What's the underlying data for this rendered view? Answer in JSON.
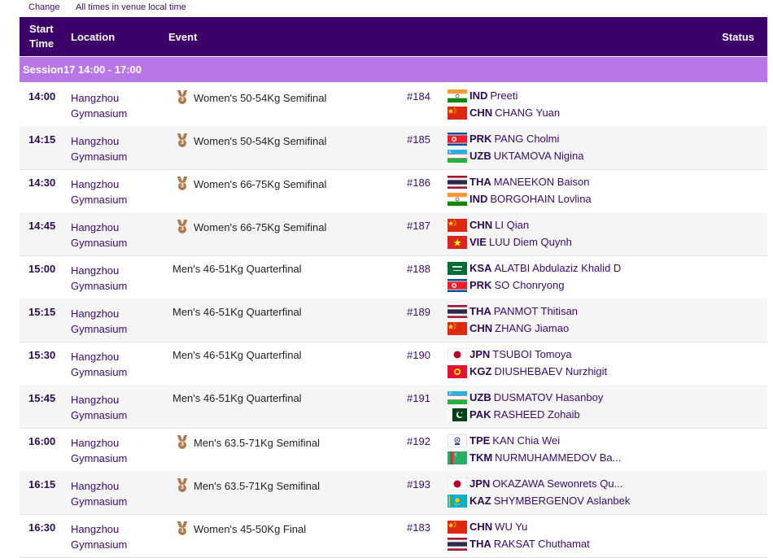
{
  "topbar": {
    "change_label": "Change",
    "timezone_note": "All times in venue local time"
  },
  "header": {
    "start_time": "Start Time",
    "location": "Location",
    "event": "Event",
    "status": "Status"
  },
  "session": {
    "label": "Session17  14:00 - 17:00"
  },
  "colors": {
    "header_bg": "#3d0068",
    "session_bg": "#b877e6",
    "medal_bronze": "#b4784a"
  },
  "rows": [
    {
      "time": "14:00",
      "location": "Hangzhou Gymnasium",
      "event": "Women's 50-54Kg Semifinal",
      "medal": "3",
      "number": "#184",
      "athletes": [
        {
          "flag": "flag-ind-icon",
          "noc": "IND",
          "name": "Preeti"
        },
        {
          "flag": "flag-chn-icon",
          "noc": "CHN",
          "name": "CHANG Yuan"
        }
      ]
    },
    {
      "time": "14:15",
      "location": "Hangzhou Gymnasium",
      "event": "Women's 50-54Kg Semifinal",
      "medal": "3",
      "number": "#185",
      "athletes": [
        {
          "flag": "flag-prk-icon",
          "noc": "PRK",
          "name": "PANG Cholmi"
        },
        {
          "flag": "flag-uzb-icon",
          "noc": "UZB",
          "name": "UKTAMOVA Nigina"
        }
      ]
    },
    {
      "time": "14:30",
      "location": "Hangzhou Gymnasium",
      "event": "Women's 66-75Kg Semifinal",
      "medal": "3",
      "number": "#186",
      "athletes": [
        {
          "flag": "flag-tha-icon",
          "noc": "THA",
          "name": "MANEEKON Baison"
        },
        {
          "flag": "flag-ind-icon",
          "noc": "IND",
          "name": "BORGOHAIN Lovlina"
        }
      ]
    },
    {
      "time": "14:45",
      "location": "Hangzhou Gymnasium",
      "event": "Women's 66-75Kg Semifinal",
      "medal": "3",
      "number": "#187",
      "athletes": [
        {
          "flag": "flag-chn-icon",
          "noc": "CHN",
          "name": "LI Qian"
        },
        {
          "flag": "flag-vie-icon",
          "noc": "VIE",
          "name": "LUU Diem Quynh"
        }
      ]
    },
    {
      "time": "15:00",
      "location": "Hangzhou Gymnasium",
      "event": "Men's 46-51Kg Quarterfinal",
      "medal": "",
      "number": "#188",
      "athletes": [
        {
          "flag": "flag-ksa-icon",
          "noc": "KSA",
          "name": "ALATBI Abdulaziz Khalid D"
        },
        {
          "flag": "flag-prk-icon",
          "noc": "PRK",
          "name": "SO Chonryong"
        }
      ]
    },
    {
      "time": "15:15",
      "location": "Hangzhou Gymnasium",
      "event": "Men's 46-51Kg Quarterfinal",
      "medal": "",
      "number": "#189",
      "athletes": [
        {
          "flag": "flag-tha-icon",
          "noc": "THA",
          "name": "PANMOT Thitisan"
        },
        {
          "flag": "flag-chn-icon",
          "noc": "CHN",
          "name": "ZHANG Jiamao"
        }
      ]
    },
    {
      "time": "15:30",
      "location": "Hangzhou Gymnasium",
      "event": "Men's 46-51Kg Quarterfinal",
      "medal": "",
      "number": "#190",
      "athletes": [
        {
          "flag": "flag-jpn-icon",
          "noc": "JPN",
          "name": "TSUBOI Tomoya"
        },
        {
          "flag": "flag-kgz-icon",
          "noc": "KGZ",
          "name": "DIUSHEBAEV Nurzhigit"
        }
      ]
    },
    {
      "time": "15:45",
      "location": "Hangzhou Gymnasium",
      "event": "Men's 46-51Kg Quarterfinal",
      "medal": "",
      "number": "#191",
      "athletes": [
        {
          "flag": "flag-uzb-icon",
          "noc": "UZB",
          "name": "DUSMATOV Hasanboy"
        },
        {
          "flag": "flag-pak-icon",
          "noc": "PAK",
          "name": "RASHEED Zohaib"
        }
      ]
    },
    {
      "time": "16:00",
      "location": "Hangzhou Gymnasium",
      "event": "Men's 63.5-71Kg Semifinal",
      "medal": "3",
      "number": "#192",
      "athletes": [
        {
          "flag": "flag-tpe-icon",
          "noc": "TPE",
          "name": "KAN Chia Wei"
        },
        {
          "flag": "flag-tkm-icon",
          "noc": "TKM",
          "name": "NURMUHAMMEDOV Ba..."
        }
      ]
    },
    {
      "time": "16:15",
      "location": "Hangzhou Gymnasium",
      "event": "Men's 63.5-71Kg Semifinal",
      "medal": "3",
      "number": "#193",
      "athletes": [
        {
          "flag": "flag-jpn-icon",
          "noc": "JPN",
          "name": "OKAZAWA Sewonrets Qu..."
        },
        {
          "flag": "flag-kaz-icon",
          "noc": "KAZ",
          "name": "SHYMBERGENOV Aslanbek"
        }
      ]
    },
    {
      "time": "16:30",
      "location": "Hangzhou Gymnasium",
      "event": "Women's 45-50Kg Final",
      "medal": "1",
      "number": "#183",
      "athletes": [
        {
          "flag": "flag-chn-icon",
          "noc": "CHN",
          "name": "WU Yu"
        },
        {
          "flag": "flag-tha-icon",
          "noc": "THA",
          "name": "RAKSAT Chuthamat"
        }
      ]
    }
  ]
}
